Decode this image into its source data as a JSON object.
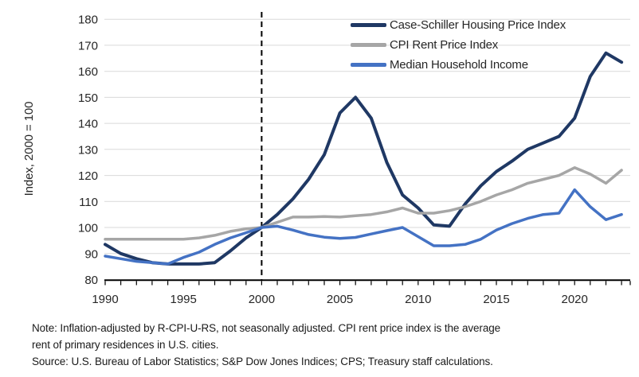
{
  "notes": {
    "line1": "Note: Inflation-adjusted by R-CPI-U-RS, not seasonally adjusted. CPI rent price index is the average",
    "line2": "rent of primary residences in U.S. cities.",
    "line3": "Source: U.S. Bureau of Labor Statistics; S&P Dow Jones Indices; CPS; Treasury staff calculations."
  },
  "chart_data": {
    "type": "line",
    "y_axis_title": "Index, 2000 = 100",
    "ylim": [
      80,
      180
    ],
    "y_ticks": [
      80,
      90,
      100,
      110,
      120,
      130,
      140,
      150,
      160,
      170,
      180
    ],
    "x_ticks_labeled": [
      1990,
      1995,
      2000,
      2005,
      2010,
      2015,
      2020
    ],
    "x_year_range": [
      1990,
      2023
    ],
    "reference_line_x": 2000,
    "grid": "horizontal",
    "legend_position": "top-right-inside",
    "axis_color": "#000000",
    "gridline_color": "#D9D9D9",
    "x": [
      1990,
      1991,
      1992,
      1993,
      1994,
      1995,
      1996,
      1997,
      1998,
      1999,
      2000,
      2001,
      2002,
      2003,
      2004,
      2005,
      2006,
      2007,
      2008,
      2009,
      2010,
      2011,
      2012,
      2013,
      2014,
      2015,
      2016,
      2017,
      2018,
      2019,
      2020,
      2021,
      2022,
      2023
    ],
    "series": [
      {
        "id": "case-shiller",
        "name": "Case-Schiller Housing Price Index",
        "color": "#1F3864",
        "width": 4,
        "values": [
          93.5,
          90,
          88,
          86.5,
          86,
          86,
          86,
          86.5,
          91,
          96,
          100,
          105,
          111,
          118.5,
          128,
          144,
          150,
          142,
          125,
          112.5,
          107.5,
          101,
          100.5,
          109,
          116,
          121.5,
          125.5,
          130,
          132.5,
          135,
          142,
          158,
          167,
          163.5
        ]
      },
      {
        "id": "cpi-rent",
        "name": "CPI Rent Price Index",
        "color": "#A6A6A6",
        "width": 3.5,
        "values": [
          95.5,
          95.5,
          95.5,
          95.5,
          95.5,
          95.5,
          96,
          97,
          98.5,
          99.5,
          100,
          102,
          104,
          104,
          104.2,
          104,
          104.5,
          105,
          106,
          107.5,
          105.5,
          105.5,
          106.5,
          108,
          110,
          112.5,
          114.5,
          117,
          118.5,
          120,
          123,
          120.5,
          117,
          122
        ]
      },
      {
        "id": "median-income",
        "name": "Median Household Income",
        "color": "#4472C4",
        "width": 3.5,
        "values": [
          89,
          88,
          87,
          86.5,
          86,
          88.5,
          90.5,
          93.5,
          96,
          98,
          100,
          100.5,
          99,
          97.3,
          96.3,
          95.8,
          96.2,
          97.5,
          98.8,
          100,
          96.5,
          93,
          93,
          93.5,
          95.5,
          99,
          101.5,
          103.5,
          105,
          105.5,
          114.5,
          108,
          103,
          105
        ]
      }
    ]
  }
}
